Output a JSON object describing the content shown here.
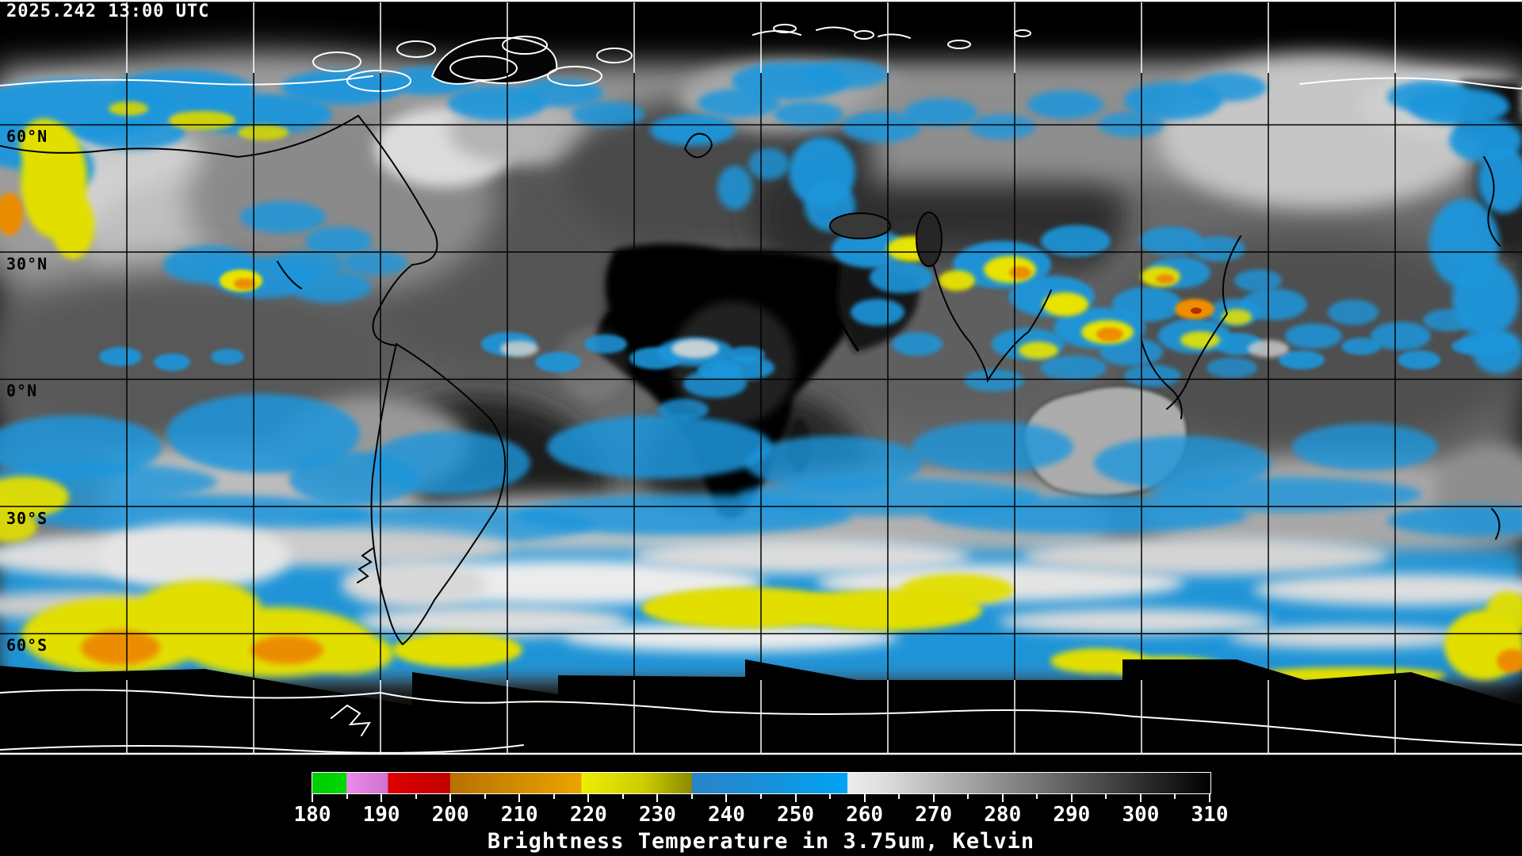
{
  "header": {
    "timestamp": "2025.242 13:00 UTC"
  },
  "map": {
    "latitude_labels": [
      "60°N",
      "30°N",
      "0°N",
      "30°S",
      "60°S"
    ],
    "grid": {
      "longitude_lines": 11,
      "latitude_lines": 5,
      "spacing_degrees": 30
    }
  },
  "colorbar": {
    "title": "Brightness Temperature in 3.75um, Kelvin",
    "unit": "Kelvin",
    "min_value": 180,
    "max_value": 310,
    "major_ticks": [
      180,
      190,
      200,
      210,
      220,
      230,
      240,
      250,
      260,
      270,
      280,
      290,
      300,
      310
    ],
    "minor_ticks": [
      185,
      195,
      205,
      215,
      225,
      235,
      245,
      255,
      265,
      275,
      285,
      295,
      305
    ],
    "palette": [
      {
        "value": 180,
        "color": "#00CC00"
      },
      {
        "value": 184.9,
        "color": "#00D800"
      },
      {
        "value": 185,
        "color": "#EE88EE"
      },
      {
        "value": 190.9,
        "color": "#CC74CC"
      },
      {
        "value": 191,
        "color": "#E00000"
      },
      {
        "value": 199.9,
        "color": "#C00000"
      },
      {
        "value": 200,
        "color": "#B87200"
      },
      {
        "value": 218.9,
        "color": "#EAA400"
      },
      {
        "value": 219,
        "color": "#EEEE00"
      },
      {
        "value": 228,
        "color": "#CCCC00"
      },
      {
        "value": 234.9,
        "color": "#8A8A00"
      },
      {
        "value": 235,
        "color": "#2A84C8"
      },
      {
        "value": 247,
        "color": "#1492DC"
      },
      {
        "value": 257.4,
        "color": "#00A4F4"
      },
      {
        "value": 257.5,
        "color": "#ECECEC"
      },
      {
        "value": 262,
        "color": "#E0E0E0"
      },
      {
        "value": 310,
        "color": "#000000"
      }
    ]
  }
}
